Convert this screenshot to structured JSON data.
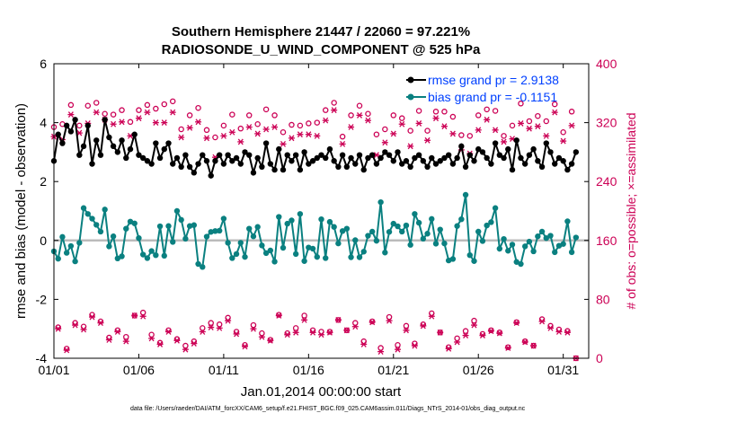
{
  "chart_data": {
    "type": "line",
    "title_line1": "Southern Hemisphere 21447 / 22060 = 97.221%",
    "title_line2": "RADIOSONDE_U_WIND_COMPONENT @ 525 hPa",
    "xlabel": "Jan.01,2014 00:00:00 start",
    "ylabel": "rmse and bias (model - observation)",
    "ylabel_right": "# of obs: o=possible; ×=assimilated",
    "footer": "data file: /Users/raeder/DAI/ATM_forcXX/CAM6_setup/f.e21.FHIST_BGC.f09_025.CAM6assim.011/Diags_NTrS_2014-01/obs_diag_output.nc",
    "xlim": [
      0,
      31.5
    ],
    "ylim": [
      -4,
      6
    ],
    "ylim_right": [
      0,
      400
    ],
    "x_ticks": [
      0,
      5,
      10,
      15,
      20,
      25,
      30
    ],
    "x_tick_labels": [
      "01/01",
      "01/06",
      "01/11",
      "01/16",
      "01/21",
      "01/26",
      "01/31"
    ],
    "y_ticks": [
      -4,
      -2,
      0,
      2,
      4,
      6
    ],
    "y_tick_labels": [
      "-4",
      "-2",
      "0",
      "2",
      "4",
      "6"
    ],
    "y_right_ticks": [
      0,
      80,
      160,
      240,
      320,
      400
    ],
    "y_right_tick_labels": [
      "0",
      "80",
      "160",
      "240",
      "320",
      "400"
    ],
    "colors": {
      "rmse": "#000000",
      "bias": "#0a8080",
      "obs": "#cc0055",
      "legend_text": "#0040ff",
      "zero_line": "#bbbbbb"
    },
    "series": [
      {
        "name": "rmse grand pr = 2.9138",
        "values": [
          2.7,
          3.6,
          3.3,
          3.9,
          3.7,
          4.1,
          2.9,
          3.2,
          3.9,
          2.6,
          3.4,
          2.9,
          4.1,
          3.5,
          3.2,
          3.0,
          3.4,
          2.8,
          3.1,
          3.6,
          2.9,
          2.8,
          2.7,
          2.6,
          3.3,
          2.8,
          3.1,
          3.3,
          2.6,
          2.8,
          2.5,
          2.9,
          2.5,
          2.3,
          2.6,
          2.9,
          2.7,
          2.2,
          2.7,
          2.9,
          2.6,
          2.9,
          2.7,
          2.8,
          2.6,
          3.0,
          2.9,
          2.3,
          2.8,
          2.5,
          3.3,
          2.6,
          2.4,
          3.1,
          2.4,
          2.9,
          2.7,
          2.9,
          2.4,
          3.0,
          2.6,
          2.7,
          2.8,
          2.9,
          2.8,
          3.1,
          2.7,
          2.5,
          2.9,
          2.5,
          2.8,
          2.6,
          2.9,
          2.4,
          2.8,
          2.9,
          2.6,
          2.8,
          3.0,
          2.9,
          2.7,
          3.0,
          2.6,
          2.7,
          2.5,
          2.8,
          2.9,
          2.7,
          2.5,
          2.8,
          2.6,
          2.7,
          2.8,
          2.9,
          2.6,
          2.8,
          3.2,
          2.5,
          2.9,
          2.7,
          3.1,
          3.0,
          2.8,
          2.6,
          3.3,
          2.9,
          2.8,
          3.1,
          2.4,
          3.4,
          2.8,
          2.6,
          2.9,
          3.1,
          2.7,
          2.5,
          3.3,
          3.0,
          2.6,
          2.8,
          2.7,
          2.4,
          2.6,
          3.0,
          2.7,
          3.0,
          2.8,
          2.6,
          3.2,
          2.7,
          2.6,
          2.8,
          3.3,
          3.0,
          2.9,
          2.7,
          3.1,
          2.6,
          2.9,
          2.5,
          2.8,
          2.6,
          3.0,
          2.7,
          2.9,
          2.4,
          2.8,
          3.2,
          2.6,
          2.7,
          2.5,
          2.8,
          2.6,
          2.9,
          2.7,
          2.5,
          2.8,
          2.6,
          2.5,
          1.9,
          2.8,
          2.6,
          2.7,
          3.0,
          2.3,
          2.8,
          3.0,
          2.8,
          2.4,
          2.9,
          2.2,
          2.7,
          2.9,
          2.8,
          3.2,
          2.6,
          3.0,
          2.5,
          3.1,
          2.6,
          2.9,
          3.0,
          2.7,
          3.3,
          2.6,
          2.9,
          3.1,
          2.8,
          2.5,
          2.7,
          3.0,
          2.9,
          2.6,
          2.8,
          2.7,
          3.2,
          2.6,
          2.8,
          3.0,
          2.5,
          2.8,
          2.5,
          2.3,
          2.9,
          3.1,
          2.7,
          3.0,
          2.6,
          2.9,
          2.7,
          2.5,
          2.2,
          2.6,
          2.8,
          1.9,
          2.7,
          2.5,
          2.8,
          2.6,
          2.9,
          2.6,
          2.5,
          3.1,
          2.8,
          2.5,
          2.7,
          2.6,
          2.7,
          2.3,
          3.2,
          2.9,
          2.4,
          3.1,
          2.6,
          2.9,
          2.8,
          2.6,
          2.4,
          2.5,
          3.4,
          2.8,
          2.7,
          3.1,
          2.4,
          2.5,
          2.7,
          2.8,
          2.9,
          3.0,
          2.8,
          3.0,
          2.7,
          2.5,
          3.1,
          2.9,
          2.2,
          3.0,
          1.9,
          2.6,
          2.4,
          2.8,
          2.6,
          2.4,
          3.4,
          3.3
        ],
        "values_note": "interpolated reading"
      }
    ]
  }
}
